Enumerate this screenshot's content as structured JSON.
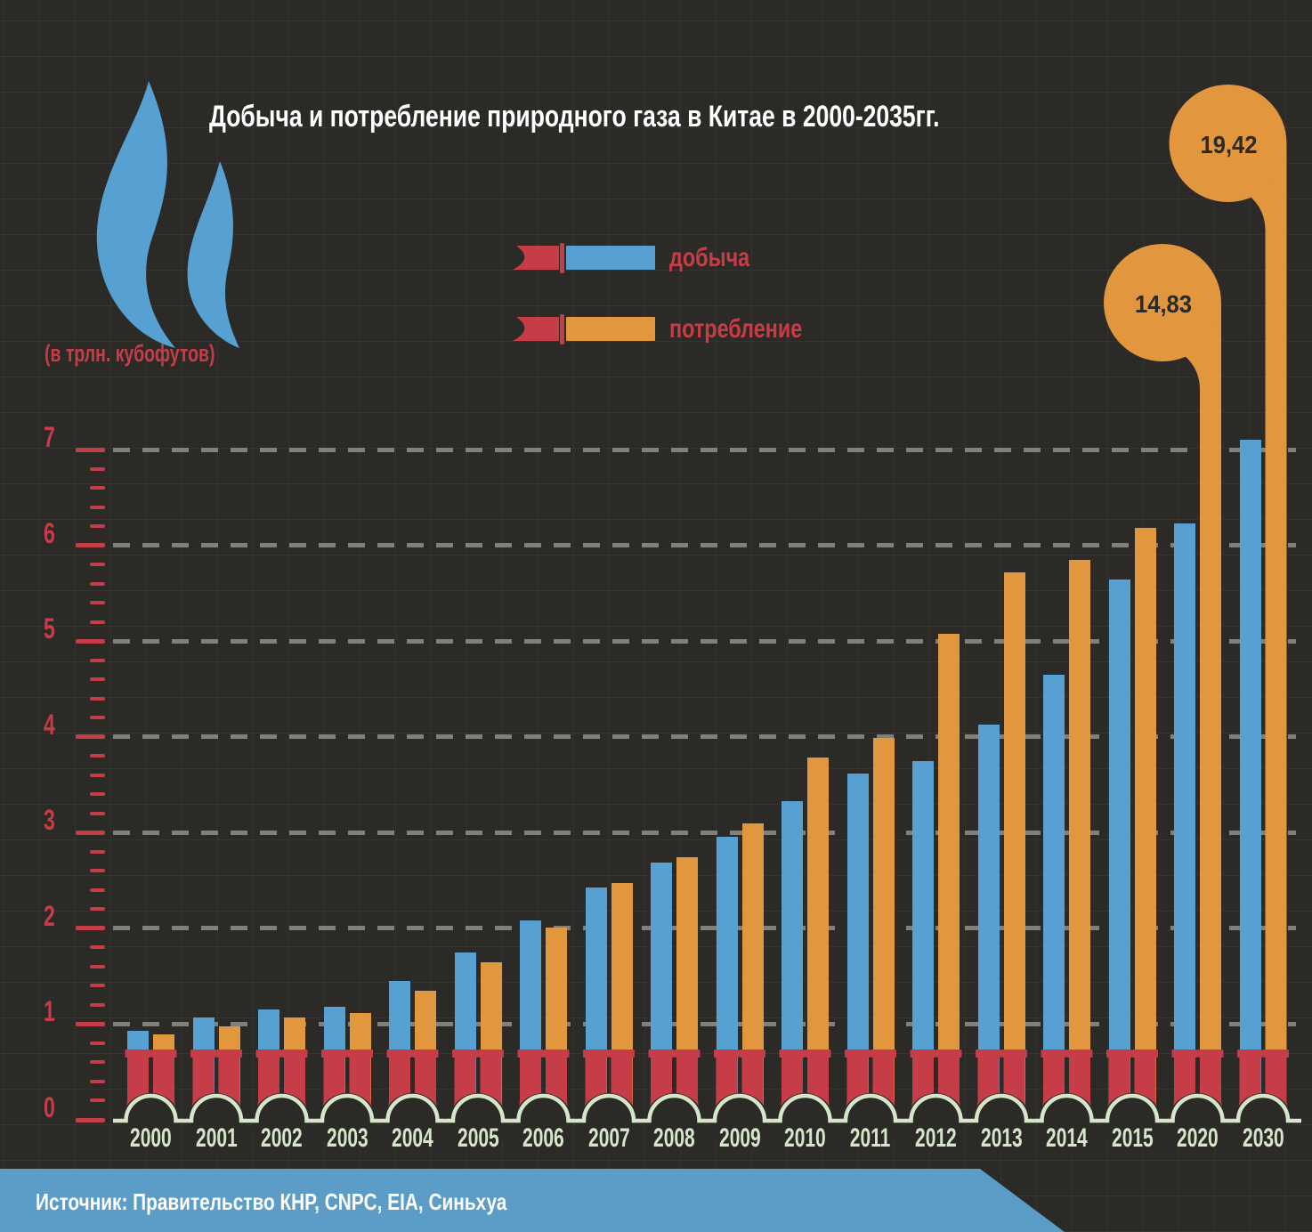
{
  "title": "Добыча и потребление природного газа в Китае в 2000-2035гг.",
  "unit_label": "(в трлн. кубофутов)",
  "legend": {
    "production_label": "добыча",
    "consumption_label": "потребление"
  },
  "source_note": "Источник: Правительство КНР, CNPC, EIA, Синьхуа",
  "colors": {
    "background": "#2b2a27",
    "production_blue": "#57a0d2",
    "consumption_orange": "#e2963e",
    "accent_red": "#c63d47",
    "axis_green": "#d5e6cb",
    "banner_blue": "#5b9dc7",
    "grid_dash_gray": "#96968e",
    "circle_text_dark": "#2b2a27"
  },
  "chart_data": {
    "type": "bar",
    "title": "Добыча и потребление природного газа в Китае в 2000-2035гг.",
    "ylabel": "(в трлн. кубофутов)",
    "categories": [
      "2000",
      "2001",
      "2002",
      "2003",
      "2004",
      "2005",
      "2006",
      "2007",
      "2008",
      "2009",
      "2010",
      "2011",
      "2012",
      "2013",
      "2014",
      "2015",
      "2020",
      "2030"
    ],
    "series": [
      {
        "name": "добыча",
        "color": "#57a0d2",
        "values": [
          0.93,
          1.07,
          1.15,
          1.18,
          1.45,
          1.75,
          2.08,
          2.43,
          2.69,
          2.96,
          3.33,
          3.62,
          3.75,
          4.13,
          4.65,
          5.64,
          6.23,
          7.1
        ]
      },
      {
        "name": "потребление",
        "color": "#e2963e",
        "values": [
          0.89,
          0.98,
          1.07,
          1.12,
          1.35,
          1.65,
          2.01,
          2.47,
          2.74,
          3.1,
          3.78,
          3.99,
          5.08,
          5.72,
          5.85,
          6.18,
          14.83,
          19.42
        ]
      }
    ],
    "ylim": [
      0,
      7
    ],
    "yticks": [
      0,
      1,
      2,
      3,
      4,
      5,
      6,
      7
    ],
    "grid": "dashed horizontal lines at each integer",
    "legend_position": "top-center",
    "callouts": [
      {
        "category": "2020",
        "series": "потребление",
        "value": 14.83,
        "label": "14,83"
      },
      {
        "category": "2030",
        "series": "потребление",
        "value": 19.42,
        "label": "19,42"
      }
    ]
  }
}
